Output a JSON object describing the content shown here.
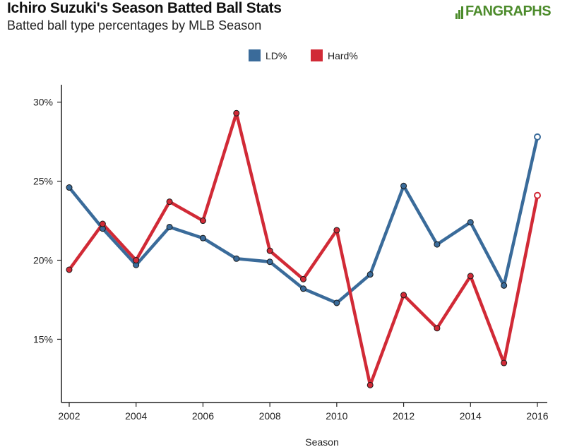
{
  "header": {
    "title": "Ichiro Suzuki's Season Batted Ball Stats",
    "subtitle": "Batted ball type percentages by MLB Season"
  },
  "brand": {
    "logo_text": "FANGRAPHS",
    "color": "#4c8b2b"
  },
  "chart_data": {
    "type": "line",
    "xlabel": "Season",
    "ylabel": "",
    "x": [
      2002,
      2003,
      2004,
      2005,
      2006,
      2007,
      2008,
      2009,
      2010,
      2011,
      2012,
      2013,
      2014,
      2015,
      2016
    ],
    "xticks": [
      2002,
      2004,
      2006,
      2008,
      2010,
      2012,
      2014,
      2016
    ],
    "yticks": [
      15,
      20,
      25,
      30
    ],
    "ytick_labels": [
      "15%",
      "20%",
      "25%",
      "30%"
    ],
    "xlim": [
      2002,
      2016
    ],
    "ylim": [
      11.0,
      31.1
    ],
    "legend": "top-center",
    "grid": false,
    "series": [
      {
        "name": "LD%",
        "color": "#3a6b9a",
        "values": [
          24.6,
          22.0,
          19.7,
          22.1,
          21.4,
          20.1,
          19.9,
          18.2,
          17.3,
          19.1,
          24.7,
          21.0,
          22.4,
          18.4,
          27.8
        ],
        "open_last": true
      },
      {
        "name": "Hard%",
        "color": "#d12a36",
        "values": [
          19.4,
          22.3,
          20.0,
          23.7,
          22.5,
          29.3,
          20.6,
          18.8,
          21.9,
          12.1,
          17.8,
          15.7,
          19.0,
          13.5,
          24.1
        ],
        "open_last": true
      }
    ]
  }
}
